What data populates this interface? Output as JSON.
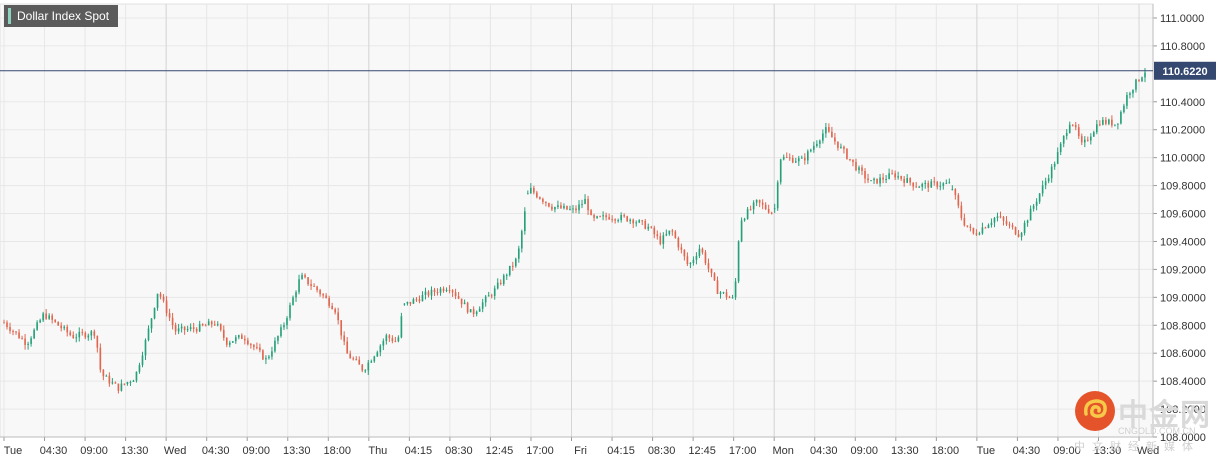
{
  "chart_data": {
    "type": "candlestick",
    "title": "Dollar Index Spot",
    "ylim": [
      108.0,
      111.1
    ],
    "y_ticks": [
      {
        "value": 111.0,
        "label": "111.0000"
      },
      {
        "value": 110.8,
        "label": "110.8000"
      },
      {
        "value": 110.4,
        "label": "110.4000"
      },
      {
        "value": 110.2,
        "label": "110.2000"
      },
      {
        "value": 110.0,
        "label": "110.0000"
      },
      {
        "value": 109.8,
        "label": "109.8000"
      },
      {
        "value": 109.6,
        "label": "109.6000"
      },
      {
        "value": 109.4,
        "label": "109.4000"
      },
      {
        "value": 109.2,
        "label": "109.2000"
      },
      {
        "value": 109.0,
        "label": "109.0000"
      },
      {
        "value": 108.8,
        "label": "108.8000"
      },
      {
        "value": 108.6,
        "label": "108.6000"
      },
      {
        "value": 108.4,
        "label": "108.4000"
      },
      {
        "value": 108.2,
        "label": "108.2000"
      },
      {
        "value": 108.0,
        "label": "108.0000"
      }
    ],
    "x_ticks": [
      "Tue",
      "04:30",
      "09:00",
      "13:30",
      "Wed",
      "04:30",
      "09:00",
      "13:30",
      "18:00",
      "Thu",
      "04:15",
      "08:30",
      "12:45",
      "17:00",
      "Fri",
      "04:15",
      "08:30",
      "12:45",
      "17:00",
      "Mon",
      "04:30",
      "09:00",
      "13:30",
      "18:00",
      "Tue",
      "04:30",
      "09:00",
      "13:30",
      "Wed"
    ],
    "separators": [
      4,
      9,
      14,
      19,
      24,
      28
    ],
    "current_price": {
      "value": 110.622,
      "label": "110.6220"
    },
    "colors": {
      "up": "#26a07a",
      "down": "#e0664f",
      "grid": "#e7e7e7",
      "price_line": "#344870",
      "label_bg": "#344870"
    },
    "anchors": [
      [
        0.0,
        108.82
      ],
      [
        0.02,
        108.67
      ],
      [
        0.035,
        108.88
      ],
      [
        0.06,
        108.72
      ],
      [
        0.08,
        108.75
      ],
      [
        0.085,
        108.45
      ],
      [
        0.1,
        108.35
      ],
      [
        0.115,
        108.43
      ],
      [
        0.125,
        108.71
      ],
      [
        0.135,
        109.05
      ],
      [
        0.15,
        108.76
      ],
      [
        0.17,
        108.78
      ],
      [
        0.185,
        108.82
      ],
      [
        0.195,
        108.68
      ],
      [
        0.21,
        108.72
      ],
      [
        0.23,
        108.55
      ],
      [
        0.245,
        108.8
      ],
      [
        0.26,
        109.15
      ],
      [
        0.275,
        109.05
      ],
      [
        0.29,
        108.92
      ],
      [
        0.3,
        108.6
      ],
      [
        0.315,
        108.48
      ],
      [
        0.335,
        108.72
      ],
      [
        0.345,
        108.68
      ],
      [
        0.35,
        108.94
      ],
      [
        0.37,
        109.02
      ],
      [
        0.39,
        109.08
      ],
      [
        0.41,
        108.88
      ],
      [
        0.43,
        109.05
      ],
      [
        0.45,
        109.28
      ],
      [
        0.46,
        109.78
      ],
      [
        0.48,
        109.65
      ],
      [
        0.5,
        109.62
      ],
      [
        0.51,
        109.7
      ],
      [
        0.515,
        109.55
      ],
      [
        0.53,
        109.58
      ],
      [
        0.55,
        109.56
      ],
      [
        0.565,
        109.5
      ],
      [
        0.575,
        109.4
      ],
      [
        0.585,
        109.48
      ],
      [
        0.6,
        109.22
      ],
      [
        0.61,
        109.36
      ],
      [
        0.625,
        109.05
      ],
      [
        0.64,
        108.98
      ],
      [
        0.645,
        109.55
      ],
      [
        0.66,
        109.68
      ],
      [
        0.675,
        109.6
      ],
      [
        0.68,
        110.0
      ],
      [
        0.7,
        109.98
      ],
      [
        0.72,
        110.2
      ],
      [
        0.735,
        110.05
      ],
      [
        0.75,
        109.9
      ],
      [
        0.76,
        109.82
      ],
      [
        0.78,
        109.88
      ],
      [
        0.8,
        109.8
      ],
      [
        0.82,
        109.81
      ],
      [
        0.83,
        109.81
      ],
      [
        0.84,
        109.55
      ],
      [
        0.85,
        109.45
      ],
      [
        0.87,
        109.58
      ],
      [
        0.89,
        109.45
      ],
      [
        0.905,
        109.7
      ],
      [
        0.92,
        109.95
      ],
      [
        0.935,
        110.28
      ],
      [
        0.945,
        110.08
      ],
      [
        0.96,
        110.26
      ],
      [
        0.97,
        110.25
      ],
      [
        0.975,
        110.24
      ],
      [
        0.985,
        110.46
      ],
      [
        1.0,
        110.62
      ]
    ],
    "gaps": [
      0.35,
      0.46,
      0.675,
      0.83
    ],
    "n_candles": 380
  },
  "watermark": {
    "brand_cn": "中金网",
    "brand_en": "CNGOLD.COM.CN",
    "tagline": "中文财经新媒体"
  }
}
